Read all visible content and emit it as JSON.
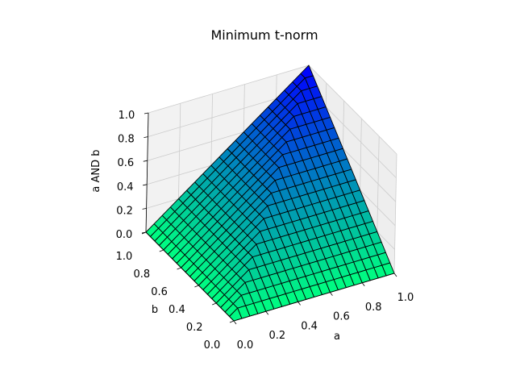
{
  "chart_data": {
    "type": "surface3d",
    "title": "Minimum t-norm",
    "xlabel": "a",
    "ylabel": "b",
    "zlabel": "a AND b",
    "function": "min(a, b)",
    "xlim": [
      0.0,
      1.0
    ],
    "ylim": [
      0.0,
      1.0
    ],
    "zlim": [
      0.0,
      1.0
    ],
    "x_ticks": [
      "0.0",
      "0.2",
      "0.4",
      "0.6",
      "0.8",
      "1.0"
    ],
    "y_ticks": [
      "0.0",
      "0.2",
      "0.4",
      "0.6",
      "0.8",
      "1.0"
    ],
    "z_ticks": [
      "0.0",
      "0.2",
      "0.4",
      "0.6",
      "0.8",
      "1.0"
    ],
    "grid_resolution": 20,
    "colormap": "winter",
    "colormap_low": "#00ff80",
    "colormap_high": "#0000ff",
    "edge_color": "#000000",
    "grid": true
  }
}
